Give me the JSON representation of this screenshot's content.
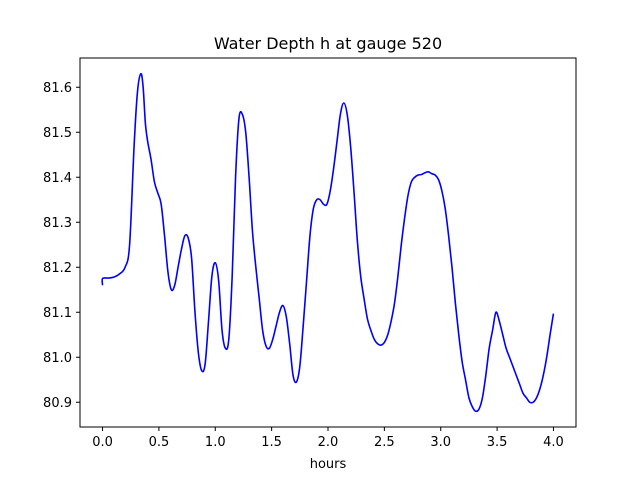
{
  "chart_data": {
    "type": "line",
    "title": "Water Depth h at gauge 520",
    "xlabel": "hours",
    "ylabel": "",
    "xlim": [
      -0.2,
      4.2
    ],
    "ylim": [
      80.845,
      81.665
    ],
    "xticks": [
      "0.0",
      "0.5",
      "1.0",
      "1.5",
      "2.0",
      "2.5",
      "3.0",
      "3.5",
      "4.0"
    ],
    "yticks": [
      "80.9",
      "81.0",
      "81.1",
      "81.2",
      "81.3",
      "81.4",
      "81.5",
      "81.6"
    ],
    "grid": false,
    "legend": "none",
    "series": [
      {
        "color": "#0000ff",
        "x": [
          0.0,
          0.0,
          0.05,
          0.1,
          0.15,
          0.2,
          0.24,
          0.28,
          0.31,
          0.34,
          0.36,
          0.38,
          0.4,
          0.43,
          0.46,
          0.49,
          0.52,
          0.55,
          0.58,
          0.61,
          0.64,
          0.67,
          0.7,
          0.73,
          0.76,
          0.79,
          0.82,
          0.85,
          0.88,
          0.91,
          0.94,
          0.97,
          1.0,
          1.03,
          1.06,
          1.09,
          1.12,
          1.15,
          1.18,
          1.21,
          1.24,
          1.27,
          1.3,
          1.33,
          1.36,
          1.39,
          1.42,
          1.45,
          1.48,
          1.51,
          1.54,
          1.57,
          1.6,
          1.63,
          1.66,
          1.69,
          1.72,
          1.75,
          1.78,
          1.81,
          1.84,
          1.87,
          1.9,
          1.93,
          1.96,
          1.99,
          2.02,
          2.05,
          2.08,
          2.11,
          2.14,
          2.17,
          2.2,
          2.23,
          2.26,
          2.29,
          2.32,
          2.35,
          2.38,
          2.41,
          2.44,
          2.47,
          2.5,
          2.53,
          2.56,
          2.59,
          2.62,
          2.65,
          2.68,
          2.71,
          2.74,
          2.77,
          2.8,
          2.83,
          2.86,
          2.89,
          2.92,
          2.95,
          2.98,
          3.01,
          3.04,
          3.07,
          3.1,
          3.13,
          3.16,
          3.19,
          3.22,
          3.25,
          3.28,
          3.31,
          3.34,
          3.37,
          3.4,
          3.43,
          3.46,
          3.49,
          3.52,
          3.55,
          3.58,
          3.61,
          3.64,
          3.67,
          3.7,
          3.73,
          3.76,
          3.79,
          3.82,
          3.85,
          3.88,
          3.91,
          3.94,
          3.97,
          4.0
        ],
        "values": [
          81.16,
          81.175,
          81.176,
          81.178,
          81.185,
          81.2,
          81.25,
          81.47,
          81.59,
          81.63,
          81.6,
          81.52,
          81.48,
          81.44,
          81.39,
          81.365,
          81.34,
          81.27,
          81.19,
          81.15,
          81.16,
          81.2,
          81.24,
          81.27,
          81.265,
          81.22,
          81.1,
          81.01,
          80.97,
          80.985,
          81.08,
          81.18,
          81.21,
          81.17,
          81.06,
          81.02,
          81.04,
          81.18,
          81.4,
          81.53,
          81.54,
          81.5,
          81.4,
          81.28,
          81.2,
          81.13,
          81.06,
          81.025,
          81.02,
          81.04,
          81.07,
          81.1,
          81.115,
          81.09,
          81.03,
          80.96,
          80.945,
          80.98,
          81.07,
          81.17,
          81.27,
          81.33,
          81.35,
          81.35,
          81.34,
          81.34,
          81.37,
          81.42,
          81.48,
          81.54,
          81.565,
          81.54,
          81.47,
          81.37,
          81.26,
          81.18,
          81.13,
          81.085,
          81.06,
          81.04,
          81.03,
          81.027,
          81.033,
          81.05,
          81.08,
          81.12,
          81.18,
          81.25,
          81.31,
          81.36,
          81.39,
          81.4,
          81.405,
          81.406,
          81.41,
          81.412,
          81.408,
          81.405,
          81.395,
          81.37,
          81.33,
          81.27,
          81.2,
          81.12,
          81.05,
          80.99,
          80.95,
          80.91,
          80.89,
          80.88,
          80.885,
          80.91,
          80.96,
          81.02,
          81.06,
          81.1,
          81.08,
          81.05,
          81.02,
          81.0,
          80.98,
          80.96,
          80.94,
          80.92,
          80.91,
          80.9,
          80.9,
          80.91,
          80.93,
          80.96,
          81.0,
          81.05,
          81.097
        ]
      }
    ]
  }
}
